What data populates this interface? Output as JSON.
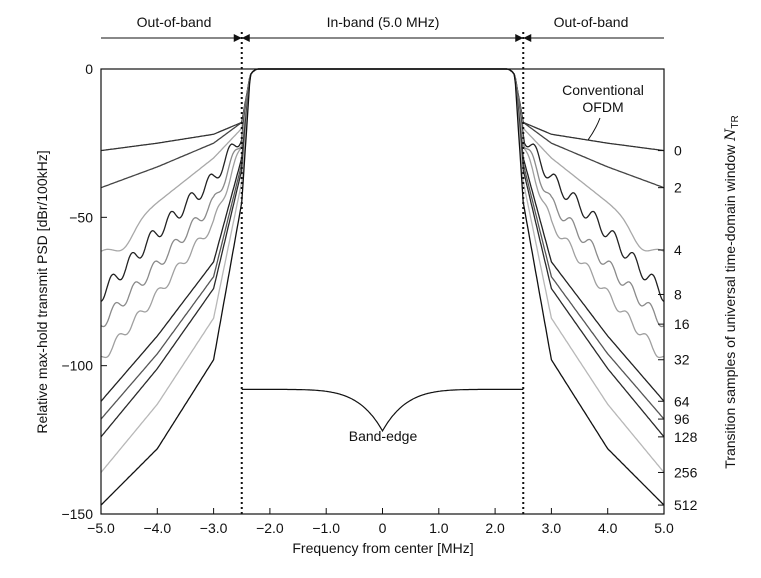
{
  "chart_data": {
    "type": "line",
    "xlabel": "Frequency from center [MHz]",
    "ylabel": "Relative max-hold transmit PSD [dBr/100kHz]",
    "y2label_text": "Transition samples of universal time-domain window ",
    "y2label_symbol": "N",
    "y2label_subscript": "TR",
    "xlim": [
      -5.0,
      5.0
    ],
    "ylim": [
      -150,
      0
    ],
    "x_ticks": [
      -5.0,
      -4.0,
      -3.0,
      -2.0,
      -1.0,
      0,
      1.0,
      2.0,
      3.0,
      4.0,
      5.0
    ],
    "x_tick_labels": [
      "−5.0",
      "−4.0",
      "−3.0",
      "−2.0",
      "−1.0",
      "0",
      "1.0",
      "2.0",
      "3.0",
      "4.0",
      "5.0"
    ],
    "y_ticks": [
      0,
      -50,
      -100,
      -150
    ],
    "y_tick_labels": [
      "0",
      "−50",
      "−100",
      "−150"
    ],
    "band_edges": [
      -2.5,
      2.5
    ],
    "regions": [
      {
        "label": "Out-of-band",
        "from": -5.0,
        "to": -2.5
      },
      {
        "label": "In-band (5.0 MHz)",
        "from": -2.5,
        "to": 2.5
      },
      {
        "label": "Out-of-band",
        "from": 2.5,
        "to": 5.0
      }
    ],
    "annotations": {
      "conventional_line1": "Conventional",
      "conventional_line2": "OFDM",
      "band_edge": "Band-edge"
    },
    "series": [
      {
        "ntr": "0",
        "color": "#333333",
        "edge": [
          -18,
          -22,
          -25,
          -27.5
        ]
      },
      {
        "ntr": "2",
        "color": "#444444",
        "edge": [
          -18,
          -25,
          -33,
          -40
        ]
      },
      {
        "ntr": "4",
        "color": "#a8a8a8",
        "edge": [
          -20,
          -30,
          -45,
          -61
        ],
        "dip": true
      },
      {
        "ntr": "8",
        "color": "#222222",
        "edge": [
          -22,
          -37,
          -55,
          -76
        ],
        "ripple": 2.5
      },
      {
        "ntr": "16",
        "color": "#8a8a8a",
        "edge": [
          -24,
          -45,
          -66,
          -86
        ],
        "ripple": 2.0
      },
      {
        "ntr": "32",
        "color": "#a0a0a0",
        "edge": [
          -26,
          -52,
          -76,
          -98
        ],
        "ripple": 1.6
      },
      {
        "ntr": "64",
        "color": "#222222",
        "edge": [
          -30,
          -65,
          -90,
          -112
        ]
      },
      {
        "ntr": "96",
        "color": "#555555",
        "edge": [
          -32,
          -70,
          -96,
          -118
        ]
      },
      {
        "ntr": "128",
        "color": "#2a2a2a",
        "edge": [
          -34,
          -74,
          -101,
          -124
        ]
      },
      {
        "ntr": "256",
        "color": "#b8b8b8",
        "edge": [
          -38,
          -84,
          -113,
          -136
        ]
      },
      {
        "ntr": "512",
        "color": "#111111",
        "edge": [
          -45,
          -98,
          -128,
          -147
        ]
      }
    ],
    "right_axis_labels": [
      {
        "label": "0",
        "y": -27.5
      },
      {
        "label": "2",
        "y": -40
      },
      {
        "label": "4",
        "y": -61
      },
      {
        "label": "8",
        "y": -76
      },
      {
        "label": "16",
        "y": -86
      },
      {
        "label": "32",
        "y": -98
      },
      {
        "label": "64",
        "y": -112
      },
      {
        "label": "96",
        "y": -118
      },
      {
        "label": "128",
        "y": -124
      },
      {
        "label": "256",
        "y": -136
      },
      {
        "label": "512",
        "y": -147
      }
    ],
    "inband_level": 0,
    "band_edge_curve": {
      "edge_value": -108,
      "center_value": -122
    }
  }
}
